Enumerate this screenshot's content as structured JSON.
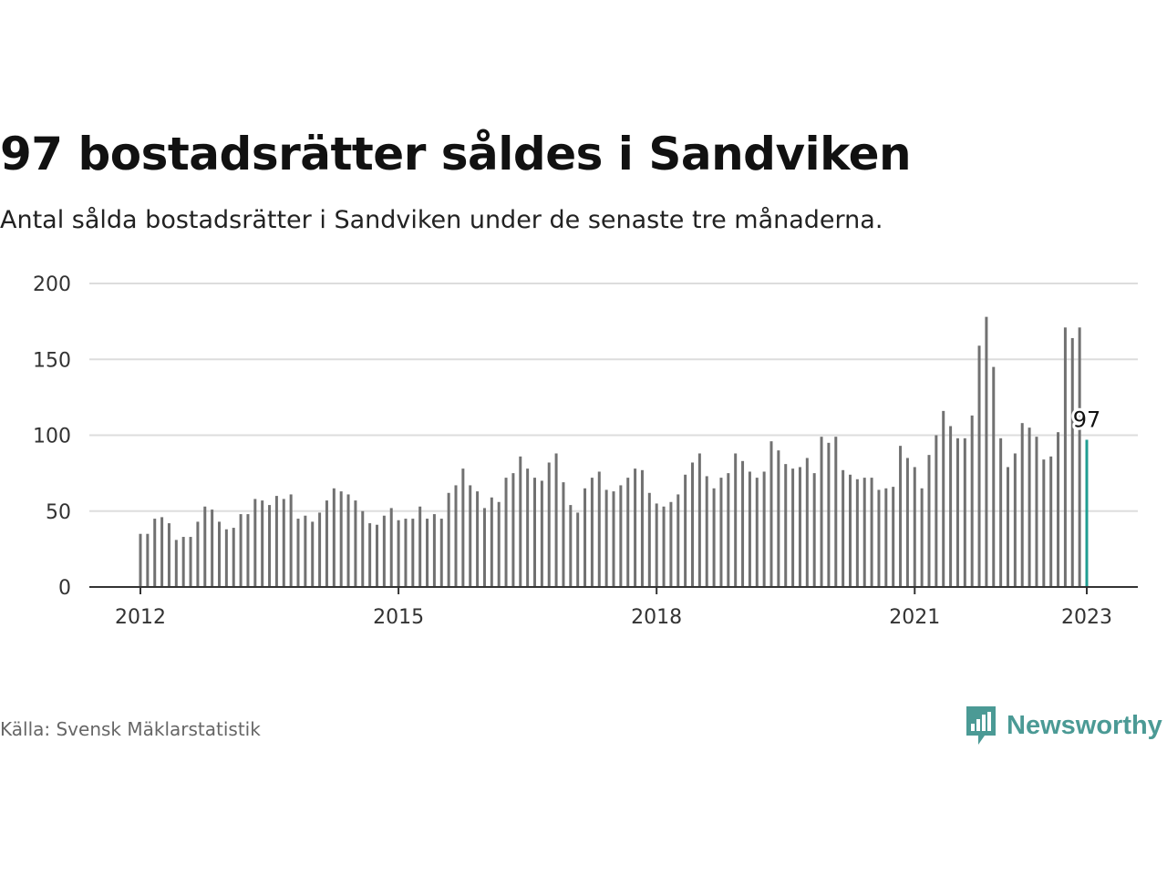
{
  "title": "97 bostadsrätter såldes i Sandviken",
  "subtitle": "Antal sålda bostadsrätter i Sandviken under de senaste tre månaderna.",
  "source": "Källa: Svensk Mäklarstatistik",
  "brand": {
    "name": "Newsworthy",
    "icon": "newsworthy-bar-chart-icon"
  },
  "colors": {
    "bar": "#717171",
    "highlight": "#1f9e92",
    "grid": "#dddddd",
    "axis": "#333333",
    "brand": "#4b9a95"
  },
  "chart_data": {
    "type": "bar",
    "title": "97 bostadsrätter såldes i Sandviken",
    "subtitle": "Antal sålda bostadsrätter i Sandviken under de senaste tre månaderna.",
    "x_start": "2012-01",
    "x_end": "2023-01",
    "x_ticks": [
      "2012",
      "2015",
      "2018",
      "2021",
      "2023"
    ],
    "y_ticks": [
      0,
      50,
      100,
      150,
      200
    ],
    "ylim": [
      0,
      200
    ],
    "grid": true,
    "values": [
      35,
      35,
      45,
      46,
      42,
      31,
      33,
      33,
      43,
      53,
      51,
      43,
      38,
      39,
      48,
      48,
      58,
      57,
      54,
      60,
      58,
      61,
      45,
      47,
      43,
      49,
      57,
      65,
      63,
      61,
      57,
      50,
      42,
      41,
      47,
      52,
      44,
      45,
      45,
      53,
      45,
      48,
      45,
      62,
      67,
      78,
      67,
      63,
      52,
      59,
      56,
      72,
      75,
      86,
      78,
      72,
      70,
      82,
      88,
      69,
      54,
      49,
      65,
      72,
      76,
      64,
      63,
      67,
      72,
      78,
      77,
      62,
      55,
      53,
      56,
      61,
      74,
      82,
      88,
      73,
      65,
      72,
      75,
      88,
      83,
      76,
      72,
      76,
      96,
      90,
      81,
      78,
      79,
      85,
      75,
      99,
      95,
      99,
      77,
      74,
      71,
      72,
      72,
      64,
      65,
      66,
      93,
      85,
      79,
      65,
      87,
      100,
      116,
      106,
      98,
      98,
      113,
      159,
      178,
      145,
      98,
      79,
      88,
      108,
      105,
      99,
      84,
      86,
      102,
      171,
      164,
      171,
      97
    ],
    "highlight": {
      "index": 132,
      "value": 97,
      "label": "97"
    }
  }
}
